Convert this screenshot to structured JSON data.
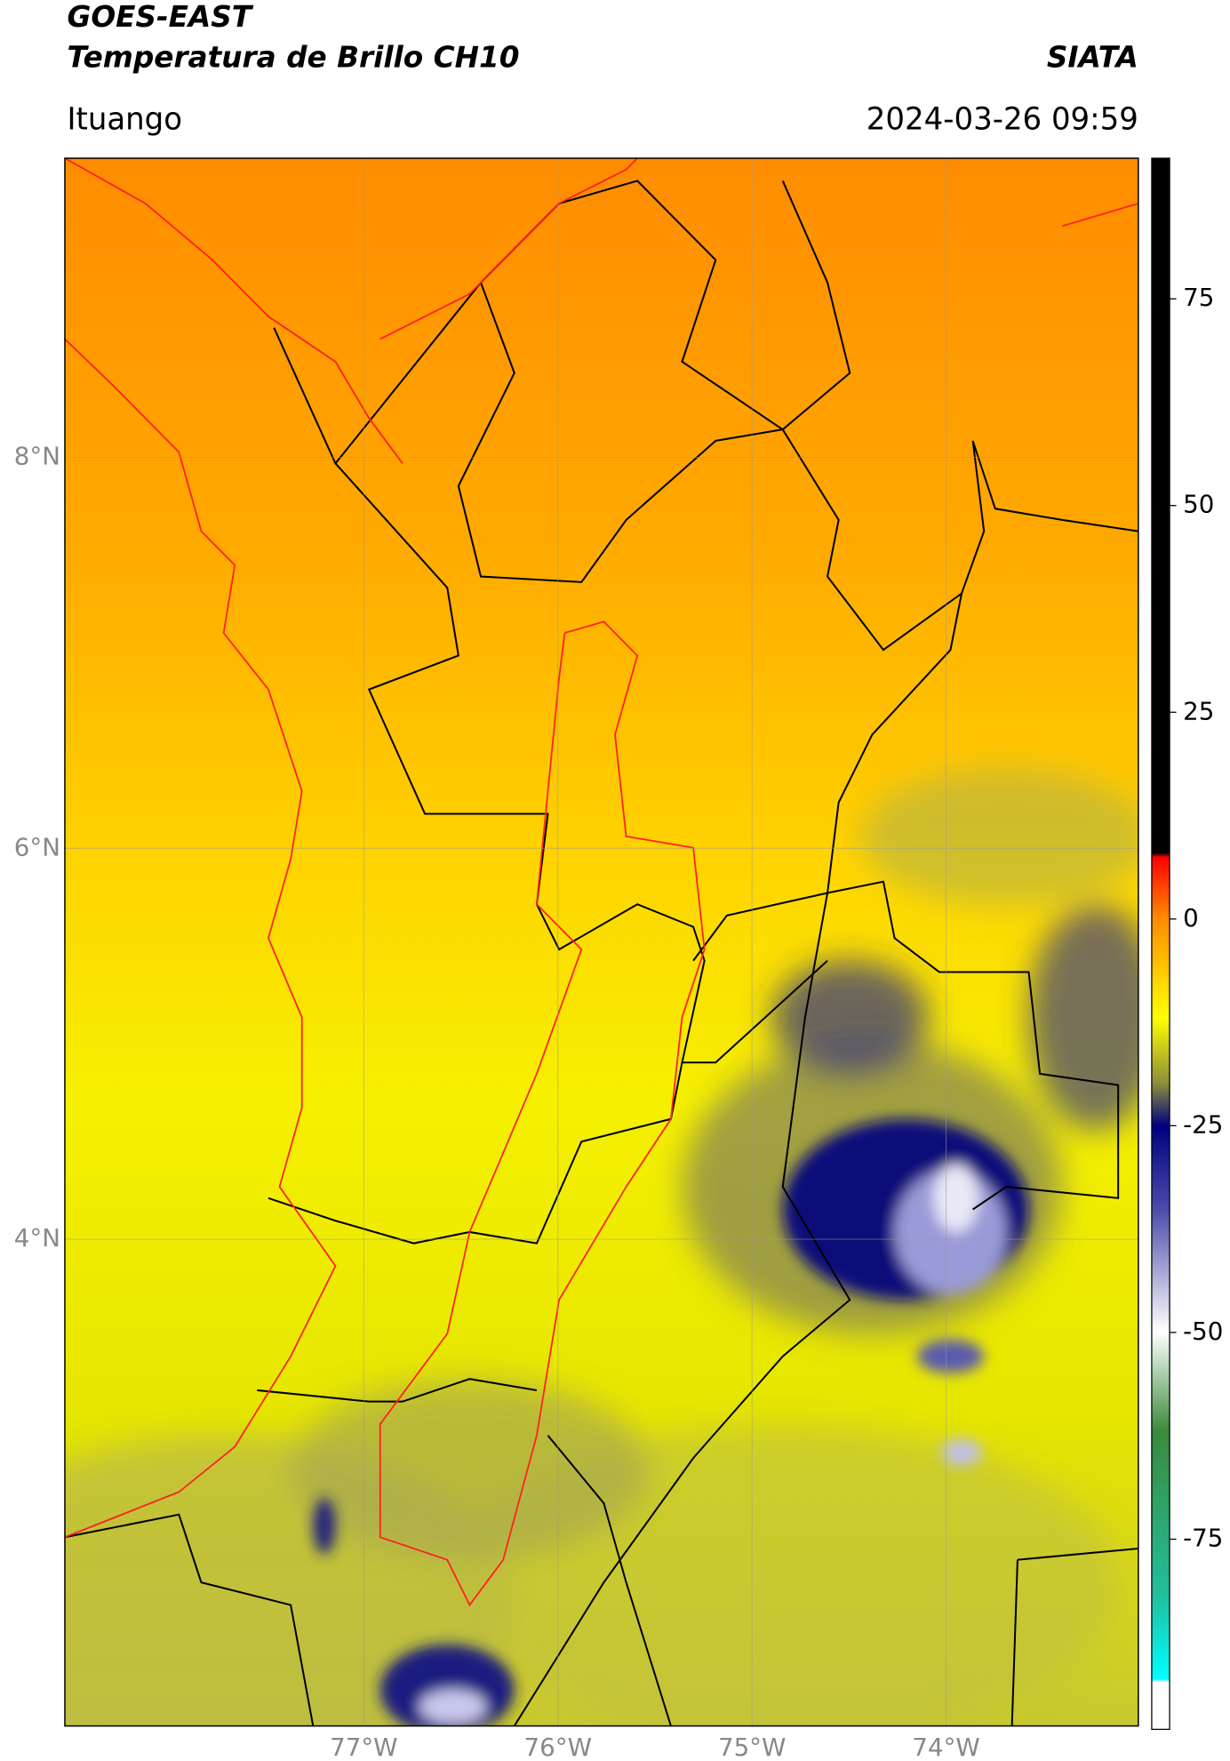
{
  "header": {
    "title": "GOES-EAST",
    "subtitle": "Temperatura de Brillo CH10",
    "brand": "SIATA",
    "region": "Ituango",
    "datetime": "2024-03-26 09:59"
  },
  "chart_data": {
    "type": "map",
    "xlim": [
      -78.54,
      -73.01
    ],
    "ylim": [
      1.51,
      9.53
    ],
    "xticks": [
      {
        "value": -77,
        "label": "77°W"
      },
      {
        "value": -76,
        "label": "76°W"
      },
      {
        "value": -75,
        "label": "75°W"
      },
      {
        "value": -74,
        "label": "74°W"
      }
    ],
    "yticks": [
      {
        "value": 4,
        "label": "4°N"
      },
      {
        "value": 6,
        "label": "6°N"
      },
      {
        "value": 8,
        "label": "8°N"
      }
    ],
    "grid": true,
    "colorbar": {
      "lim": [
        -98,
        92
      ],
      "ticks": [
        -75,
        -50,
        -25,
        0,
        25,
        50,
        75
      ]
    }
  }
}
